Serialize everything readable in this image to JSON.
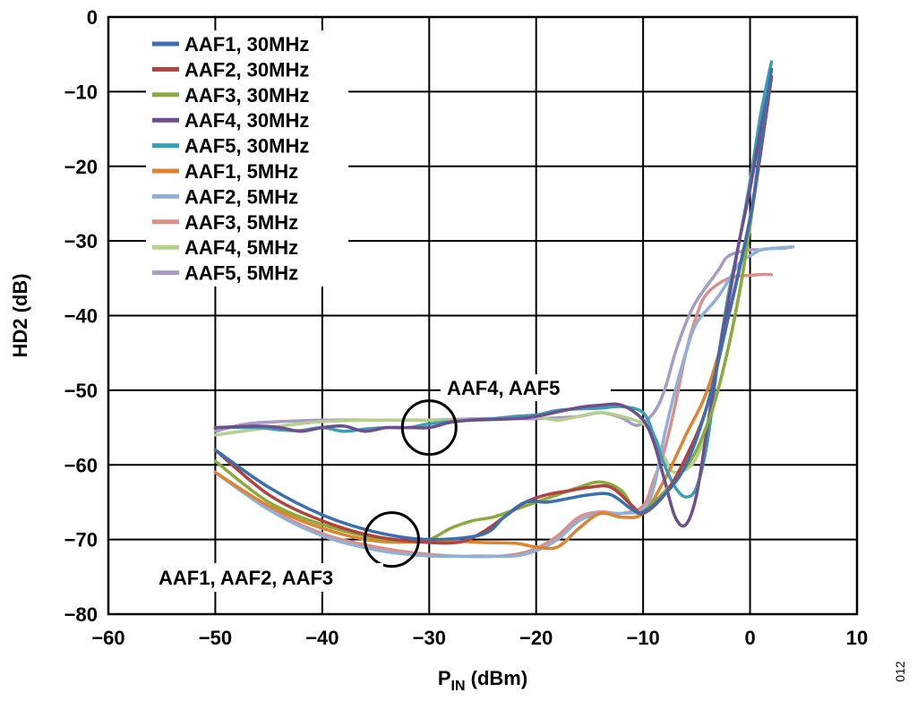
{
  "chart_data": {
    "type": "line",
    "xlabel_main": "P",
    "xlabel_sub": "IN",
    "xlabel_rest": " (dBm)",
    "ylabel": "HD2 (dB)",
    "xlim": [
      -60,
      10
    ],
    "ylim": [
      -80,
      0
    ],
    "xticks": [
      -60,
      -50,
      -40,
      -30,
      -20,
      -10,
      0,
      10
    ],
    "yticks": [
      0,
      -10,
      -20,
      -30,
      -40,
      -50,
      -60,
      -70,
      -80
    ],
    "xtick_labels": [
      "−60",
      "−50",
      "−40",
      "−30",
      "−20",
      "−10",
      "0",
      "10"
    ],
    "ytick_labels": [
      "0",
      "−10",
      "−20",
      "−30",
      "−40",
      "−50",
      "−60",
      "−70",
      "−80"
    ],
    "grid": true,
    "legend_position": "top-left",
    "series": [
      {
        "name": "AAF1, 30MHz",
        "color": "#3a6fb0",
        "points": [
          [
            -50,
            -58
          ],
          [
            -45,
            -63
          ],
          [
            -40,
            -66.7
          ],
          [
            -35,
            -69
          ],
          [
            -30,
            -70
          ],
          [
            -25,
            -69.3
          ],
          [
            -23,
            -67
          ],
          [
            -21,
            -65
          ],
          [
            -19,
            -65
          ],
          [
            -17,
            -64.5
          ],
          [
            -15,
            -64
          ],
          [
            -13,
            -64
          ],
          [
            -11,
            -66
          ],
          [
            -10,
            -66.3
          ],
          [
            -8,
            -64
          ],
          [
            -6,
            -60
          ],
          [
            -4,
            -52
          ],
          [
            -2,
            -40
          ],
          [
            0,
            -27
          ],
          [
            1,
            -17
          ],
          [
            2,
            -7
          ]
        ]
      },
      {
        "name": "AAF2, 30MHz",
        "color": "#b5403d",
        "points": [
          [
            -50,
            -58
          ],
          [
            -45,
            -64
          ],
          [
            -40,
            -67.5
          ],
          [
            -35,
            -69.6
          ],
          [
            -30,
            -70.4
          ],
          [
            -27,
            -70.3
          ],
          [
            -25,
            -69
          ],
          [
            -23,
            -67
          ],
          [
            -21,
            -65
          ],
          [
            -19,
            -64
          ],
          [
            -17,
            -63.5
          ],
          [
            -15,
            -63
          ],
          [
            -13,
            -63
          ],
          [
            -11,
            -65.5
          ],
          [
            -10,
            -66.5
          ],
          [
            -8,
            -64
          ],
          [
            -6,
            -59
          ],
          [
            -4,
            -52
          ],
          [
            -2,
            -40
          ],
          [
            0,
            -27
          ],
          [
            1,
            -18
          ],
          [
            2,
            -8
          ]
        ]
      },
      {
        "name": "AAF3, 30MHz",
        "color": "#8aaa3c",
        "points": [
          [
            -50,
            -59.5
          ],
          [
            -45,
            -65
          ],
          [
            -40,
            -68
          ],
          [
            -35,
            -69.8
          ],
          [
            -32,
            -70.2
          ],
          [
            -30,
            -70
          ],
          [
            -28,
            -68.5
          ],
          [
            -26,
            -67.5
          ],
          [
            -24,
            -67
          ],
          [
            -22,
            -66
          ],
          [
            -20,
            -65
          ],
          [
            -18,
            -64
          ],
          [
            -16,
            -63
          ],
          [
            -14,
            -62.3
          ],
          [
            -12,
            -63.5
          ],
          [
            -10.5,
            -66.5
          ],
          [
            -9,
            -65
          ],
          [
            -7,
            -62
          ],
          [
            -5,
            -58
          ],
          [
            -3,
            -50
          ],
          [
            -1,
            -37
          ],
          [
            0.5,
            -23
          ],
          [
            2,
            -8
          ]
        ]
      },
      {
        "name": "AAF4, 30MHz",
        "color": "#6e4f8e",
        "points": [
          [
            -50,
            -55
          ],
          [
            -46,
            -54.8
          ],
          [
            -44,
            -55
          ],
          [
            -42,
            -55.5
          ],
          [
            -40,
            -55
          ],
          [
            -38,
            -54.8
          ],
          [
            -36,
            -55.5
          ],
          [
            -34,
            -55
          ],
          [
            -32,
            -55
          ],
          [
            -30,
            -55
          ],
          [
            -28,
            -54.3
          ],
          [
            -26,
            -54
          ],
          [
            -22,
            -53.8
          ],
          [
            -20,
            -53.5
          ],
          [
            -16,
            -52.3
          ],
          [
            -14,
            -52
          ],
          [
            -12,
            -52
          ],
          [
            -10,
            -54
          ],
          [
            -9,
            -57
          ],
          [
            -8,
            -62
          ],
          [
            -7,
            -67
          ],
          [
            -6,
            -68
          ],
          [
            -5,
            -64
          ],
          [
            -4,
            -55
          ],
          [
            -3,
            -46
          ],
          [
            -2,
            -38
          ],
          [
            -1,
            -30
          ],
          [
            0,
            -23
          ],
          [
            1,
            -15
          ],
          [
            2,
            -8
          ]
        ]
      },
      {
        "name": "AAF5, 30MHz",
        "color": "#3a9eb5",
        "points": [
          [
            -50,
            -55
          ],
          [
            -46,
            -55
          ],
          [
            -44,
            -55.3
          ],
          [
            -42,
            -55.4
          ],
          [
            -40,
            -55
          ],
          [
            -38,
            -55.5
          ],
          [
            -36,
            -55.2
          ],
          [
            -34,
            -55
          ],
          [
            -32,
            -55
          ],
          [
            -30,
            -54.5
          ],
          [
            -28,
            -54.2
          ],
          [
            -26,
            -54
          ],
          [
            -24,
            -53.8
          ],
          [
            -22,
            -53.5
          ],
          [
            -20,
            -53.3
          ],
          [
            -18,
            -52.7
          ],
          [
            -16,
            -52.5
          ],
          [
            -14,
            -52.4
          ],
          [
            -12,
            -52.2
          ],
          [
            -10,
            -53
          ],
          [
            -9,
            -56
          ],
          [
            -8,
            -60
          ],
          [
            -7,
            -63
          ],
          [
            -6,
            -64.3
          ],
          [
            -5,
            -63
          ],
          [
            -4,
            -57
          ],
          [
            -3,
            -46
          ],
          [
            -2,
            -37
          ],
          [
            -1,
            -30
          ],
          [
            0,
            -22
          ],
          [
            1,
            -13
          ],
          [
            2,
            -6
          ]
        ]
      },
      {
        "name": "AAF1, 5MHz",
        "color": "#e0832e",
        "points": [
          [
            -50,
            -61
          ],
          [
            -45,
            -65.5
          ],
          [
            -40,
            -68.5
          ],
          [
            -35,
            -70.2
          ],
          [
            -30,
            -70.3
          ],
          [
            -28,
            -70.2
          ],
          [
            -25,
            -70.4
          ],
          [
            -22,
            -70.5
          ],
          [
            -20,
            -71
          ],
          [
            -18,
            -71
          ],
          [
            -16,
            -68.5
          ],
          [
            -14,
            -66.5
          ],
          [
            -12,
            -67
          ],
          [
            -10,
            -66.5
          ],
          [
            -8,
            -62
          ],
          [
            -6,
            -56
          ],
          [
            -4,
            -50
          ],
          [
            -2,
            -40
          ],
          [
            0,
            -27
          ],
          [
            1,
            -18
          ],
          [
            2,
            -8
          ]
        ]
      },
      {
        "name": "AAF2, 5MHz",
        "color": "#8fb0d8",
        "points": [
          [
            -50,
            -61
          ],
          [
            -45,
            -66
          ],
          [
            -40,
            -69.5
          ],
          [
            -35,
            -71.4
          ],
          [
            -30,
            -72.2
          ],
          [
            -25,
            -72.2
          ],
          [
            -22,
            -72.2
          ],
          [
            -20,
            -71.5
          ],
          [
            -18,
            -70
          ],
          [
            -16,
            -67.5
          ],
          [
            -14,
            -66.5
          ],
          [
            -12,
            -66.5
          ],
          [
            -10,
            -66
          ],
          [
            -9,
            -63
          ],
          [
            -8,
            -56
          ],
          [
            -7,
            -50
          ],
          [
            -6,
            -45
          ],
          [
            -5,
            -41
          ],
          [
            -3,
            -37.5
          ],
          [
            -1,
            -33
          ],
          [
            0,
            -32
          ],
          [
            1,
            -31.2
          ],
          [
            2,
            -31
          ],
          [
            3,
            -31
          ],
          [
            4,
            -30.8
          ]
        ]
      },
      {
        "name": "AAF3, 5MHz",
        "color": "#de8e88",
        "points": [
          [
            -50,
            -61
          ],
          [
            -45,
            -65.8
          ],
          [
            -40,
            -69.2
          ],
          [
            -35,
            -71
          ],
          [
            -30,
            -72
          ],
          [
            -25,
            -72.3
          ],
          [
            -22,
            -72
          ],
          [
            -20,
            -71.2
          ],
          [
            -18,
            -69.5
          ],
          [
            -16,
            -67
          ],
          [
            -14,
            -66.3
          ],
          [
            -12,
            -66.5
          ],
          [
            -10,
            -65.5
          ],
          [
            -9,
            -62
          ],
          [
            -8,
            -58
          ],
          [
            -7,
            -52
          ],
          [
            -6,
            -45
          ],
          [
            -5,
            -40
          ],
          [
            -4,
            -37
          ],
          [
            -2,
            -35
          ],
          [
            0,
            -34.6
          ],
          [
            1,
            -34.5
          ],
          [
            2,
            -34.5
          ]
        ]
      },
      {
        "name": "AAF4, 5MHz",
        "color": "#b7cf8c",
        "points": [
          [
            -50,
            -56
          ],
          [
            -45,
            -55
          ],
          [
            -40,
            -54.2
          ],
          [
            -35,
            -54
          ],
          [
            -30,
            -54
          ],
          [
            -25,
            -54
          ],
          [
            -22,
            -53.8
          ],
          [
            -20,
            -53.6
          ],
          [
            -18,
            -54
          ],
          [
            -16,
            -53.5
          ],
          [
            -14,
            -53
          ],
          [
            -12,
            -53.5
          ],
          [
            -10,
            -54.5
          ],
          [
            -9,
            -56
          ],
          [
            -8,
            -59
          ],
          [
            -7,
            -61
          ],
          [
            -5,
            -59
          ],
          [
            -3,
            -50
          ],
          [
            -1,
            -37
          ],
          [
            0.5,
            -23
          ],
          [
            2,
            -8
          ]
        ]
      },
      {
        "name": "AAF5, 5MHz",
        "color": "#a69cc4",
        "points": [
          [
            -50,
            -55.5
          ],
          [
            -47,
            -54.5
          ],
          [
            -44,
            -54.2
          ],
          [
            -40,
            -54
          ],
          [
            -35,
            -54
          ],
          [
            -30,
            -54
          ],
          [
            -25,
            -53.8
          ],
          [
            -20,
            -53.8
          ],
          [
            -16,
            -53.5
          ],
          [
            -14,
            -53
          ],
          [
            -12,
            -53.7
          ],
          [
            -10.5,
            -54.7
          ],
          [
            -9,
            -53
          ],
          [
            -8,
            -50
          ],
          [
            -7,
            -45
          ],
          [
            -6,
            -41
          ],
          [
            -5,
            -38
          ],
          [
            -3,
            -34
          ],
          [
            -2,
            -32
          ],
          [
            0,
            -31.2
          ],
          [
            1,
            -31.2
          ],
          [
            2,
            -31
          ],
          [
            4,
            -30.8
          ]
        ]
      }
    ],
    "annotations": [
      {
        "text": "AAF4, AAF5",
        "circle_center": [
          -30,
          -55
        ]
      },
      {
        "text": "AAF1, AAF2, AAF3",
        "circle_center": [
          -33.5,
          -70
        ]
      }
    ],
    "figure_id": "012"
  }
}
